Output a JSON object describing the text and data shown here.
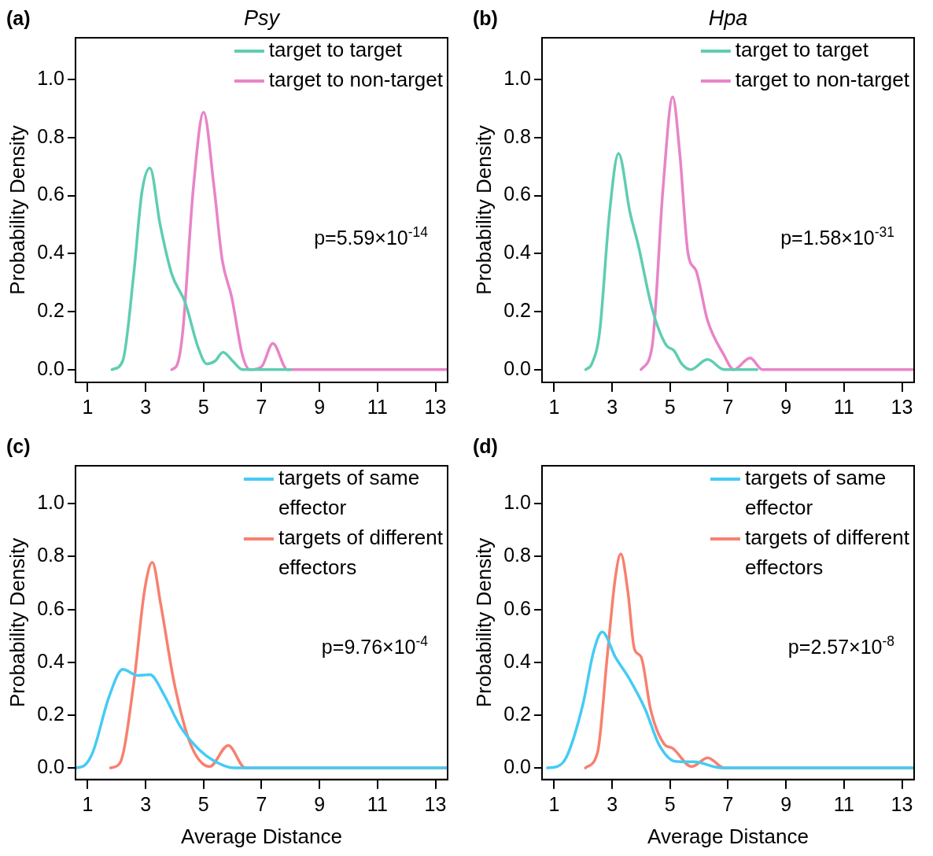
{
  "chart_data": [
    {
      "type": "line",
      "title": "Psy",
      "ylabel": "Probability Density",
      "annotations": [
        "(a)",
        "p=5.59×10$^{-14}$"
      ],
      "legend": "top right",
      "grid": false,
      "marker": "none",
      "line_style": "solid",
      "xlim": [
        0.58,
        13.42
      ],
      "xticks": [
        1,
        3,
        5,
        7,
        9,
        11,
        13
      ],
      "ylim": [
        -0.044,
        1.144
      ],
      "yticks": [
        {
          "value": 0,
          "label": "0.0"
        },
        {
          "value": 0.2,
          "label": "0.2"
        },
        {
          "value": 0.4,
          "label": "0.4"
        },
        {
          "value": 0.6,
          "label": "0.6"
        },
        {
          "value": 0.8,
          "label": "0.8"
        },
        {
          "value": 1,
          "label": "1.0"
        }
      ],
      "series": [
        {
          "name": "target to target",
          "color": "#5fcdb2",
          "x": [
            1.84,
            2.21,
            2.59,
            2.87,
            3.15,
            3.5,
            3.9,
            4.37,
            4.8,
            5.11,
            5.4,
            5.67,
            6.0,
            6.34,
            8.0
          ],
          "values": [
            0,
            0.03,
            0.33,
            0.61,
            0.695,
            0.5,
            0.33,
            0.23,
            0.08,
            0.02,
            0.03,
            0.06,
            0.03,
            0,
            0
          ]
        },
        {
          "name": "target to non-target",
          "color": "#e884c8",
          "x": [
            3.9,
            4.1,
            4.28,
            4.65,
            5.0,
            5.36,
            5.64,
            5.97,
            6.34,
            6.6,
            7.0,
            7.39,
            7.89,
            13.4
          ],
          "values": [
            0,
            0.02,
            0.13,
            0.63,
            0.887,
            0.63,
            0.38,
            0.25,
            0.05,
            0,
            0.01,
            0.09,
            0,
            0
          ]
        }
      ]
    },
    {
      "type": "line",
      "title": "Hpa",
      "ylabel": "Probability Density",
      "annotations": [
        "(b)",
        "p=1.58×10$^{-31}$"
      ],
      "legend": "top right",
      "grid": false,
      "marker": "none",
      "line_style": "solid",
      "xlim": [
        0.58,
        13.42
      ],
      "xticks": [
        1,
        3,
        5,
        7,
        9,
        11,
        13
      ],
      "ylim": [
        -0.044,
        1.144
      ],
      "yticks": [
        {
          "value": 0,
          "label": "0.0"
        },
        {
          "value": 0.2,
          "label": "0.2"
        },
        {
          "value": 0.4,
          "label": "0.4"
        },
        {
          "value": 0.6,
          "label": "0.6"
        },
        {
          "value": 0.8,
          "label": "0.8"
        },
        {
          "value": 1,
          "label": "1.0"
        }
      ],
      "series": [
        {
          "name": "target to target",
          "color": "#5fcdb2",
          "x": [
            2.09,
            2.3,
            2.57,
            2.9,
            3.22,
            3.62,
            3.9,
            4.38,
            4.86,
            5.14,
            5.4,
            5.71,
            6.29,
            6.86,
            8.0
          ],
          "values": [
            0,
            0.02,
            0.13,
            0.53,
            0.745,
            0.54,
            0.43,
            0.21,
            0.085,
            0.065,
            0.02,
            0,
            0.035,
            0,
            0
          ]
        },
        {
          "name": "target to non-target",
          "color": "#e884c8",
          "x": [
            4.0,
            4.38,
            4.76,
            5.09,
            5.33,
            5.62,
            5.9,
            6.29,
            6.86,
            7.2,
            7.76,
            8.19,
            13.4
          ],
          "values": [
            0,
            0.08,
            0.63,
            0.94,
            0.75,
            0.4,
            0.34,
            0.17,
            0.05,
            0,
            0.04,
            0,
            0
          ]
        }
      ]
    },
    {
      "type": "line",
      "ylabel": "Probability Density",
      "xlabel": "Average Distance",
      "annotations": [
        "(c)",
        "p=9.76×10$^{-4}$"
      ],
      "legend": "top right",
      "grid": false,
      "marker": "none",
      "line_style": "solid",
      "xlim": [
        0.58,
        13.42
      ],
      "xticks": [
        1,
        3,
        5,
        7,
        9,
        11,
        13
      ],
      "ylim": [
        -0.044,
        1.144
      ],
      "yticks": [
        {
          "value": 0,
          "label": "0.0"
        },
        {
          "value": 0.2,
          "label": "0.2"
        },
        {
          "value": 0.4,
          "label": "0.4"
        },
        {
          "value": 0.6,
          "label": "0.6"
        },
        {
          "value": 0.8,
          "label": "0.8"
        },
        {
          "value": 1,
          "label": "1.0"
        }
      ],
      "series": [
        {
          "name": "targets of same effector",
          "color": "#45cbf5",
          "x": [
            0.61,
            0.9,
            1.18,
            1.74,
            2.21,
            2.73,
            3.15,
            3.62,
            4.18,
            4.75,
            5.31,
            6.06,
            13.4
          ],
          "values": [
            0,
            0.01,
            0.06,
            0.27,
            0.373,
            0.35,
            0.353,
            0.28,
            0.16,
            0.08,
            0.03,
            0,
            0
          ]
        },
        {
          "name": "targets of different effectors",
          "color": "#f8806f",
          "x": [
            1.79,
            2.12,
            2.59,
            2.96,
            3.23,
            3.52,
            3.99,
            4.55,
            5.21,
            5.85,
            6.44,
            13.4
          ],
          "values": [
            0,
            0.02,
            0.32,
            0.67,
            0.778,
            0.62,
            0.32,
            0.09,
            0.005,
            0.085,
            0,
            0
          ]
        }
      ]
    },
    {
      "type": "line",
      "ylabel": "Probability Density",
      "xlabel": "Average Distance",
      "annotations": [
        "(d)",
        "p=2.57×10$^{-8}$"
      ],
      "legend": "top right",
      "grid": false,
      "marker": "none",
      "line_style": "solid",
      "xlim": [
        0.58,
        13.42
      ],
      "xticks": [
        1,
        3,
        5,
        7,
        9,
        11,
        13
      ],
      "ylim": [
        -0.044,
        1.144
      ],
      "yticks": [
        {
          "value": 0,
          "label": "0.0"
        },
        {
          "value": 0.2,
          "label": "0.2"
        },
        {
          "value": 0.4,
          "label": "0.4"
        },
        {
          "value": 0.6,
          "label": "0.6"
        },
        {
          "value": 0.8,
          "label": "0.8"
        },
        {
          "value": 1,
          "label": "1.0"
        }
      ],
      "series": [
        {
          "name": "targets of same effector",
          "color": "#45cbf5",
          "x": [
            0.77,
            1.1,
            1.42,
            1.99,
            2.36,
            2.66,
            3.11,
            3.58,
            4.15,
            4.61,
            5.18,
            5.84,
            6.77,
            13.4
          ],
          "values": [
            0,
            0.005,
            0.04,
            0.24,
            0.44,
            0.515,
            0.42,
            0.34,
            0.22,
            0.09,
            0.025,
            0.023,
            0,
            0
          ]
        },
        {
          "name": "targets of different effectors",
          "color": "#f8806f",
          "x": [
            2.08,
            2.5,
            2.83,
            3.11,
            3.3,
            3.54,
            3.77,
            4.0,
            4.33,
            4.8,
            5.08,
            5.74,
            6.3,
            6.87,
            13.4
          ],
          "values": [
            0,
            0.06,
            0.42,
            0.72,
            0.81,
            0.67,
            0.45,
            0.42,
            0.22,
            0.09,
            0.075,
            0.005,
            0.038,
            0,
            0
          ]
        }
      ]
    }
  ]
}
